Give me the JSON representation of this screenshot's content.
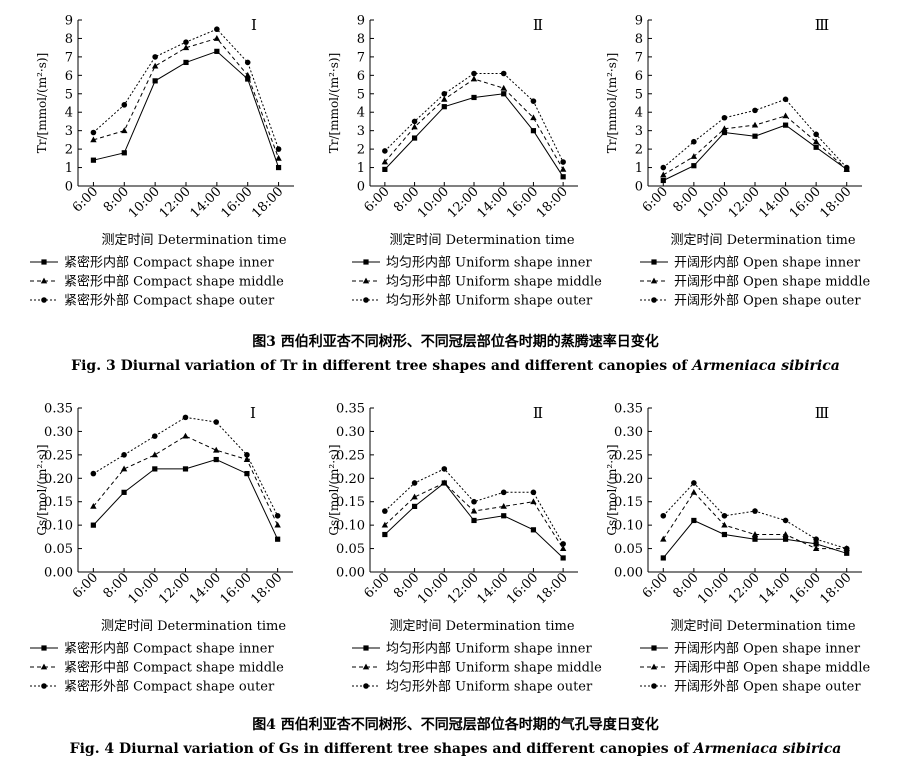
{
  "figures": [
    {
      "caption_cn": "图3  西伯利亚杏不同树形、不同冠层部位各时期的蒸腾速率日变化",
      "caption_en_pre": "Fig. 3  Diurnal variation of Tr in different tree shapes and different canopies of ",
      "caption_en_italic": "Armeniaca sibirica"
    },
    {
      "caption_cn": "图4  西伯利亚杏不同树形、不同冠层部位各时期的气孔导度日变化",
      "caption_en_pre": "Fig. 4  Diurnal variation of Gs in different tree shapes and different canopies of ",
      "caption_en_italic": "Armeniaca sibirica"
    }
  ],
  "legend_groups": [
    {
      "entries": [
        "紧密形内部 Compact shape inner",
        "紧密形中部 Compact shape middle",
        "紧密形外部 Compact shape outer"
      ]
    },
    {
      "entries": [
        "均匀形内部 Uniform shape inner",
        "均匀形中部 Uniform shape middle",
        "均匀形外部 Uniform shape outer"
      ]
    },
    {
      "entries": [
        "开阔形内部 Open shape inner",
        "开阔形中部 Open shape middle",
        "开阔形外部 Open shape outer"
      ]
    }
  ],
  "chart_data": [
    {
      "type": "line",
      "panel": "Ⅰ",
      "group": 0,
      "ylabel": "Tr/[mmol/(m²·s)]",
      "xlabel": "测定时间 Determination time",
      "categories": [
        "6:00",
        "8:00",
        "10:00",
        "12:00",
        "14:00",
        "16:00",
        "18:00"
      ],
      "ylim": [
        0,
        9
      ],
      "yticks": [
        "0",
        "1",
        "2",
        "3",
        "4",
        "5",
        "6",
        "7",
        "8",
        "9"
      ],
      "series": [
        {
          "name": "紧密形内部 Compact shape inner",
          "values": [
            1.4,
            1.8,
            5.7,
            6.7,
            7.3,
            5.8,
            1.0
          ]
        },
        {
          "name": "紧密形中部 Compact shape middle",
          "values": [
            2.5,
            3.0,
            6.5,
            7.5,
            8.0,
            6.0,
            1.5
          ]
        },
        {
          "name": "紧密形外部 Compact shape outer",
          "values": [
            2.9,
            4.4,
            7.0,
            7.8,
            8.5,
            6.7,
            2.0
          ]
        }
      ]
    },
    {
      "type": "line",
      "panel": "Ⅱ",
      "group": 1,
      "ylabel": "Tr/[mmol/(m²·s)]",
      "xlabel": "测定时间 Determination time",
      "categories": [
        "6:00",
        "8:00",
        "10:00",
        "12:00",
        "14:00",
        "16:00",
        "18:00"
      ],
      "ylim": [
        0,
        9
      ],
      "yticks": [
        "0",
        "1",
        "2",
        "3",
        "4",
        "5",
        "6",
        "7",
        "8",
        "9"
      ],
      "series": [
        {
          "name": "均匀形内部 Uniform shape inner",
          "values": [
            0.9,
            2.6,
            4.3,
            4.8,
            5.0,
            3.0,
            0.5
          ]
        },
        {
          "name": "均匀形中部 Uniform shape middle",
          "values": [
            1.3,
            3.2,
            4.7,
            5.8,
            5.3,
            3.7,
            0.9
          ]
        },
        {
          "name": "均匀形外部 Uniform shape outer",
          "values": [
            1.9,
            3.5,
            5.0,
            6.1,
            6.1,
            4.6,
            1.3
          ]
        }
      ]
    },
    {
      "type": "line",
      "panel": "Ⅲ",
      "group": 2,
      "ylabel": "Tr/[mmol/(m²·s)]",
      "xlabel": "测定时间 Determination time",
      "categories": [
        "6:00",
        "8:00",
        "10:00",
        "12:00",
        "14:00",
        "16:00",
        "18:00"
      ],
      "ylim": [
        0,
        9
      ],
      "yticks": [
        "0",
        "1",
        "2",
        "3",
        "4",
        "5",
        "6",
        "7",
        "8",
        "9"
      ],
      "series": [
        {
          "name": "开阔形内部 Open shape inner",
          "values": [
            0.3,
            1.1,
            2.9,
            2.7,
            3.3,
            2.1,
            0.9
          ]
        },
        {
          "name": "开阔形中部 Open shape middle",
          "values": [
            0.6,
            1.6,
            3.1,
            3.3,
            3.8,
            2.4,
            0.9
          ]
        },
        {
          "name": "开阔形外部 Open shape outer",
          "values": [
            1.0,
            2.4,
            3.7,
            4.1,
            4.7,
            2.8,
            1.0
          ]
        }
      ]
    },
    {
      "type": "line",
      "panel": "Ⅰ",
      "group": 0,
      "ylabel": "Gs/[mol/(m²·s)]",
      "xlabel": "测定时间 Determination time",
      "categories": [
        "6:00",
        "8:00",
        "10:00",
        "12:00",
        "14:00",
        "16:00",
        "18:00"
      ],
      "ylim": [
        0,
        0.35
      ],
      "yticks": [
        "0.00",
        "0.05",
        "0.10",
        "0.15",
        "0.20",
        "0.25",
        "0.30",
        "0.35"
      ],
      "series": [
        {
          "name": "紧密形内部 Compact shape inner",
          "values": [
            0.1,
            0.17,
            0.22,
            0.22,
            0.24,
            0.21,
            0.07
          ]
        },
        {
          "name": "紧密形中部 Compact shape middle",
          "values": [
            0.14,
            0.22,
            0.25,
            0.29,
            0.26,
            0.24,
            0.1
          ]
        },
        {
          "name": "紧密形外部 Compact shape outer",
          "values": [
            0.21,
            0.25,
            0.29,
            0.33,
            0.32,
            0.25,
            0.12
          ]
        }
      ]
    },
    {
      "type": "line",
      "panel": "Ⅱ",
      "group": 1,
      "ylabel": "Gs/[mol/(m²·s)]",
      "xlabel": "测定时间 Determination time",
      "categories": [
        "6:00",
        "8:00",
        "10:00",
        "12:00",
        "14:00",
        "16:00",
        "18:00"
      ],
      "ylim": [
        0,
        0.35
      ],
      "yticks": [
        "0.00",
        "0.05",
        "0.10",
        "0.15",
        "0.20",
        "0.25",
        "0.30",
        "0.35"
      ],
      "series": [
        {
          "name": "均匀形内部 Uniform shape inner",
          "values": [
            0.08,
            0.14,
            0.19,
            0.11,
            0.12,
            0.09,
            0.03
          ]
        },
        {
          "name": "均匀形中部 Uniform shape middle",
          "values": [
            0.1,
            0.16,
            0.19,
            0.13,
            0.14,
            0.15,
            0.05
          ]
        },
        {
          "name": "均匀形外部 Uniform shape outer",
          "values": [
            0.13,
            0.19,
            0.22,
            0.15,
            0.17,
            0.17,
            0.06
          ]
        }
      ]
    },
    {
      "type": "line",
      "panel": "Ⅲ",
      "group": 2,
      "ylabel": "Gs/[mol/(m²·s)]",
      "xlabel": "测定时间 Determination time",
      "categories": [
        "6:00",
        "8:00",
        "10:00",
        "12:00",
        "14:00",
        "16:00",
        "18:00"
      ],
      "ylim": [
        0,
        0.35
      ],
      "yticks": [
        "0.00",
        "0.05",
        "0.10",
        "0.15",
        "0.20",
        "0.25",
        "0.30",
        "0.35"
      ],
      "series": [
        {
          "name": "开阔形内部 Open shape inner",
          "values": [
            0.03,
            0.11,
            0.08,
            0.07,
            0.07,
            0.06,
            0.04
          ]
        },
        {
          "name": "开阔形中部 Open shape middle",
          "values": [
            0.07,
            0.17,
            0.1,
            0.08,
            0.08,
            0.05,
            0.05
          ]
        },
        {
          "name": "开阔形外部 Open shape outer",
          "values": [
            0.12,
            0.19,
            0.12,
            0.13,
            0.11,
            0.07,
            0.05
          ]
        }
      ]
    }
  ]
}
